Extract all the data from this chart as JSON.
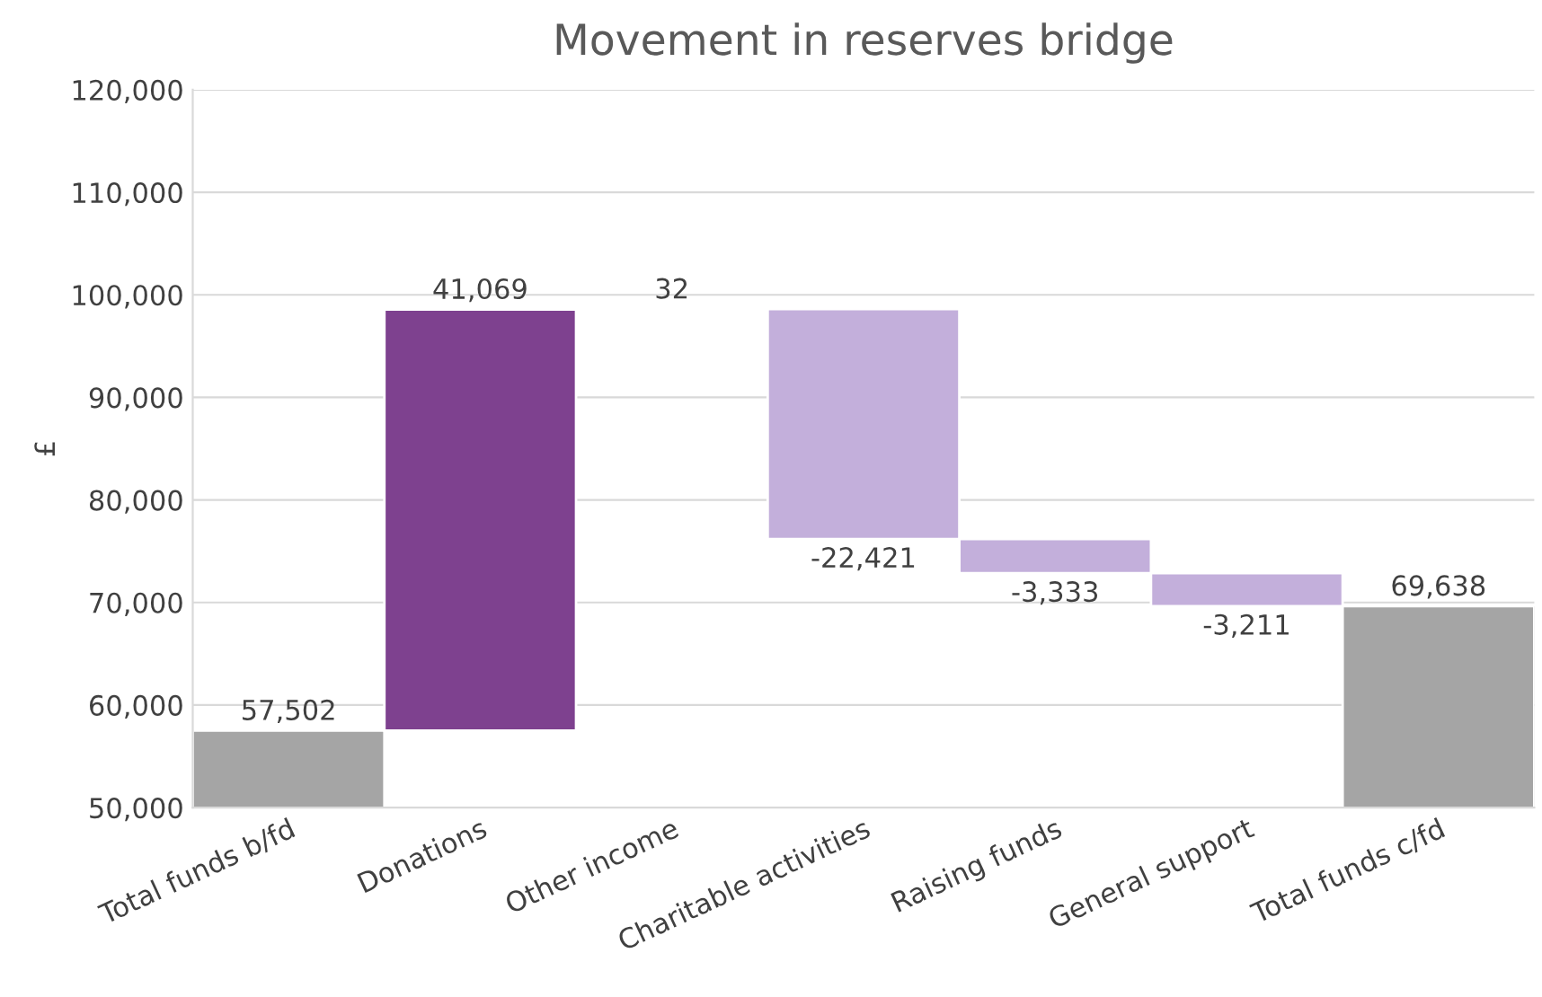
{
  "chart_data": {
    "type": "bar",
    "title": "Movement in reserves bridge",
    "ylabel": "£",
    "categories": [
      "Total funds b/fd",
      "Donations",
      "Other income",
      "Charitable activities",
      "Raising funds",
      "General support",
      "Total funds c/fd"
    ],
    "values": [
      57502,
      41069,
      32,
      -22421,
      -3333,
      -3211,
      69638
    ],
    "base": [
      0,
      57502,
      98571,
      98603,
      76182,
      72849,
      0
    ],
    "colors": [
      "#a5a5a5",
      "#7e418f",
      "#7e418f",
      "#c3afdb",
      "#c3afdb",
      "#c3afdb",
      "#a5a5a5"
    ],
    "value_labels": [
      "57,502",
      "41,069",
      "32",
      "-22,421",
      "-3,333",
      "-3,211",
      "69,638"
    ],
    "ylim": [
      50000,
      120000
    ],
    "yticks": [
      {
        "value": 50000,
        "label": "50,000"
      },
      {
        "value": 60000,
        "label": "60,000"
      },
      {
        "value": 70000,
        "label": "70,000"
      },
      {
        "value": 80000,
        "label": "80,000"
      },
      {
        "value": 90000,
        "label": "90,000"
      },
      {
        "value": 100000,
        "label": "100,000"
      },
      {
        "value": 110000,
        "label": "110,000"
      },
      {
        "value": 120000,
        "label": "120,000"
      }
    ],
    "grid": "y",
    "legend": false
  }
}
